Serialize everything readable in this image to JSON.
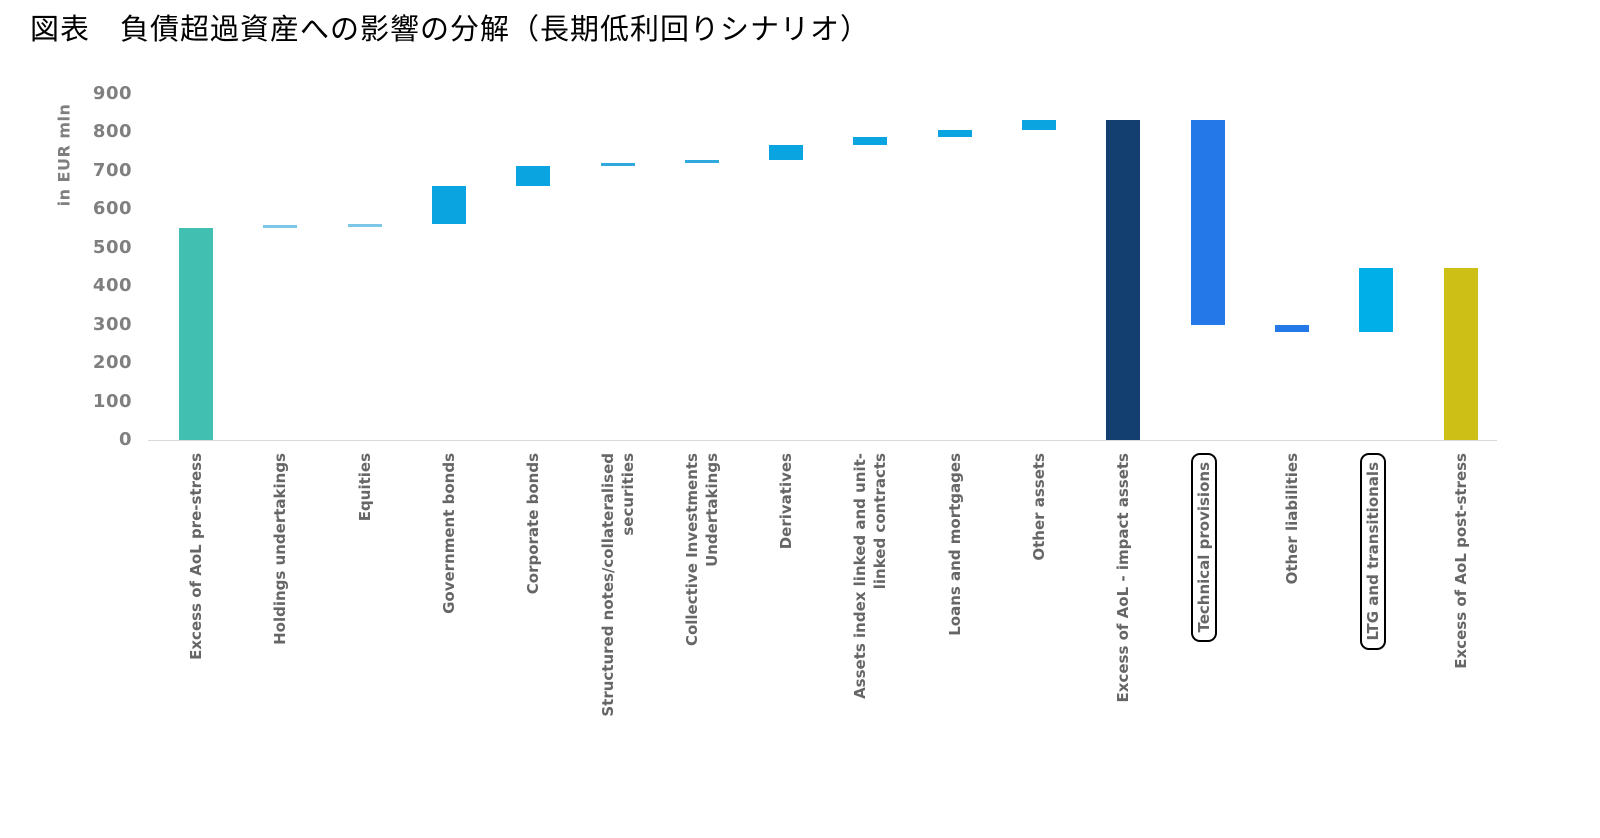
{
  "title": "図表　負債超過資産への影響の分解（長期低利回りシナリオ）",
  "chart_data": {
    "type": "bar",
    "subtype": "waterfall",
    "title": "図表　負債超過資産への影響の分解（長期低利回りシナリオ）",
    "xlabel": "",
    "ylabel": "in EUR mln",
    "ylim": [
      0,
      900
    ],
    "ytick_interval": 100,
    "grid": false,
    "legend": "none",
    "bars": [
      {
        "label": "Excess of AoL pre-stress",
        "lines": [
          "Excess of AoL pre-stress"
        ],
        "start": 0,
        "end": 550,
        "role": "total",
        "color": "#41BFB0",
        "boxed": false
      },
      {
        "label": "Holdings undertakings",
        "lines": [
          "Holdings undertakings"
        ],
        "start": 550,
        "end": 558,
        "role": "increase",
        "color": "#7CC7E7",
        "boxed": false
      },
      {
        "label": "Equities",
        "lines": [
          "Equities"
        ],
        "start": 558,
        "end": 562,
        "role": "increase",
        "color": "#7CC7E7",
        "boxed": false
      },
      {
        "label": "Government bonds",
        "lines": [
          "Government bonds"
        ],
        "start": 562,
        "end": 660,
        "role": "increase",
        "color": "#0AA5E0",
        "boxed": false
      },
      {
        "label": "Corporate bonds",
        "lines": [
          "Corporate bonds"
        ],
        "start": 660,
        "end": 712,
        "role": "increase",
        "color": "#0AA5E0",
        "boxed": false
      },
      {
        "label": "Structured notes/collateralised securities",
        "lines": [
          "Structured notes/collateralised",
          "securities"
        ],
        "start": 712,
        "end": 719,
        "role": "increase",
        "color": "#2FA8DD",
        "boxed": false
      },
      {
        "label": "Collective Investments Undertakings",
        "lines": [
          "Collective Investments",
          "Undertakings"
        ],
        "start": 719,
        "end": 726,
        "role": "increase",
        "color": "#2FA8DD",
        "boxed": false
      },
      {
        "label": "Derivatives",
        "lines": [
          "Derivatives"
        ],
        "start": 726,
        "end": 765,
        "role": "increase",
        "color": "#0AA5E0",
        "boxed": false
      },
      {
        "label": "Assets index linked and unit-linked contracts",
        "lines": [
          "Assets index linked and unit-",
          "linked contracts"
        ],
        "start": 765,
        "end": 787,
        "role": "increase",
        "color": "#0AA5E0",
        "boxed": false
      },
      {
        "label": "Loans and mortgages",
        "lines": [
          "Loans and mortgages"
        ],
        "start": 787,
        "end": 806,
        "role": "increase",
        "color": "#0AA5E0",
        "boxed": false
      },
      {
        "label": "Other assets",
        "lines": [
          "Other assets"
        ],
        "start": 806,
        "end": 832,
        "role": "increase",
        "color": "#0AA5E0",
        "boxed": false
      },
      {
        "label": "Excess  of  AoL - impact assets",
        "lines": [
          "Excess  of  AoL - impact assets"
        ],
        "start": 0,
        "end": 832,
        "role": "total",
        "color": "#123F6F",
        "boxed": false
      },
      {
        "label": "Technical provisions",
        "lines": [
          "Technical provisions"
        ],
        "start": 832,
        "end": 298,
        "role": "decrease",
        "color": "#2478E8",
        "boxed": true
      },
      {
        "label": "Other liabilities",
        "lines": [
          "Other liabilities"
        ],
        "start": 298,
        "end": 281,
        "role": "decrease",
        "color": "#2478E8",
        "boxed": false
      },
      {
        "label": "LTG and transitionals",
        "lines": [
          "LTG and transitionals"
        ],
        "start": 281,
        "end": 447,
        "role": "increase",
        "color": "#00AEE8",
        "boxed": true
      },
      {
        "label": "Excess of AoL post-stress",
        "lines": [
          "Excess of AoL post-stress"
        ],
        "start": 0,
        "end": 447,
        "role": "total",
        "color": "#CEBF17",
        "boxed": false
      }
    ]
  }
}
